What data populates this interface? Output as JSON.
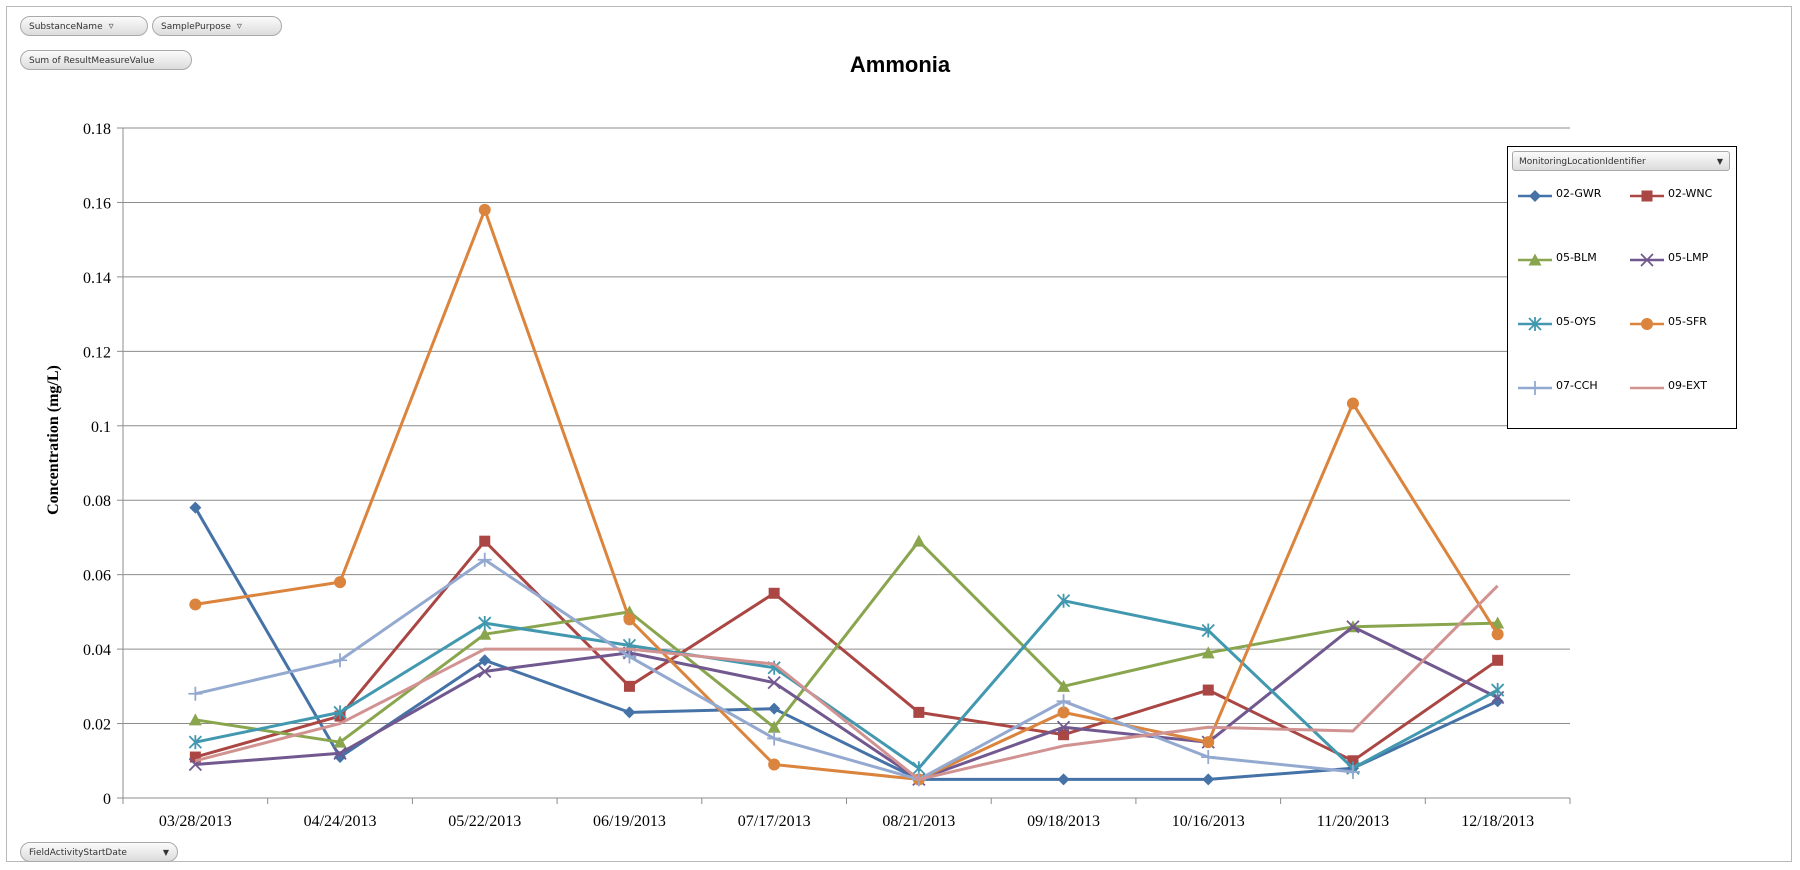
{
  "filters": {
    "substance": "SubstanceName",
    "purpose": "SamplePurpose",
    "values_field": "Sum of ResultMeasureValue",
    "axis_field": "FieldActivityStartDate",
    "legend_field": "MonitoringLocationIdentifier"
  },
  "chart_data": {
    "type": "line",
    "title": "Ammonia",
    "xlabel": "",
    "ylabel": "Concentration (mg/L)",
    "ylim": [
      0,
      0.18
    ],
    "yticks": [
      "0",
      "0.02",
      "0.04",
      "0.06",
      "0.08",
      "0.1",
      "0.12",
      "0.14",
      "0.16",
      "0.18"
    ],
    "grid": true,
    "legend_position": "right",
    "categories": [
      "03/28/2013",
      "04/24/2013",
      "05/22/2013",
      "06/19/2013",
      "07/17/2013",
      "08/21/2013",
      "09/18/2013",
      "10/16/2013",
      "11/20/2013",
      "12/18/2013"
    ],
    "series": [
      {
        "name": "02-GWR",
        "color": "#4572a7",
        "marker": "diamond",
        "values": [
          0.078,
          0.011,
          0.037,
          0.023,
          0.024,
          0.005,
          0.005,
          0.005,
          0.008,
          0.026
        ]
      },
      {
        "name": "02-WNC",
        "color": "#aa4643",
        "marker": "square",
        "values": [
          0.011,
          0.022,
          0.069,
          0.03,
          0.055,
          0.023,
          0.017,
          0.029,
          0.01,
          0.037
        ]
      },
      {
        "name": "05-BLM",
        "color": "#89a54e",
        "marker": "triangle",
        "values": [
          0.021,
          0.015,
          0.044,
          0.05,
          0.019,
          0.069,
          0.03,
          0.039,
          0.046,
          0.047
        ]
      },
      {
        "name": "05-LMP",
        "color": "#71588f",
        "marker": "x",
        "values": [
          0.009,
          0.012,
          0.034,
          0.039,
          0.031,
          0.005,
          0.019,
          0.015,
          0.046,
          0.027
        ]
      },
      {
        "name": "05-OYS",
        "color": "#4198af",
        "marker": "star",
        "values": [
          0.015,
          0.023,
          0.047,
          0.041,
          0.035,
          0.008,
          0.053,
          0.045,
          0.008,
          0.029
        ]
      },
      {
        "name": "05-SFR",
        "color": "#db843d",
        "marker": "circle",
        "values": [
          0.052,
          0.058,
          0.158,
          0.048,
          0.009,
          0.005,
          0.023,
          0.015,
          0.106,
          0.044
        ]
      },
      {
        "name": "07-CCH",
        "color": "#93a9cf",
        "marker": "plus",
        "values": [
          0.028,
          0.037,
          0.064,
          0.038,
          0.016,
          0.005,
          0.026,
          0.011,
          0.007,
          null
        ]
      },
      {
        "name": "09-EXT",
        "color": "#d19392",
        "marker": "none",
        "values": [
          0.01,
          0.02,
          0.04,
          0.04,
          0.036,
          0.005,
          0.014,
          0.019,
          0.018,
          0.057
        ]
      }
    ]
  }
}
